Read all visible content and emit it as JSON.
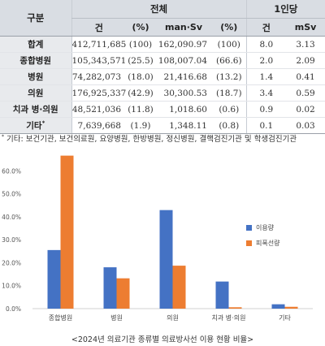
{
  "table": {
    "header_group": "구분",
    "group_total": "전체",
    "group_per_capita": "1인당",
    "sub_headers": [
      "건",
      "(%)",
      "man·Sv",
      "(%)",
      "건",
      "mSv"
    ],
    "rows": [
      {
        "label": "합계",
        "cases": "412,711,685",
        "cases_pct": "(100)",
        "dose": "162,090.97",
        "dose_pct": "(100)",
        "pc_cases": "8.0",
        "pc_msv": "3.13"
      },
      {
        "label": "종합병원",
        "cases": "105,343,571",
        "cases_pct": "(25.5)",
        "dose": "108,007.04",
        "dose_pct": "(66.6)",
        "pc_cases": "2.0",
        "pc_msv": "2.09"
      },
      {
        "label": "병원",
        "cases": "74,282,073",
        "cases_pct": "(18.0)",
        "dose": "21,416.68",
        "dose_pct": "(13.2)",
        "pc_cases": "1.4",
        "pc_msv": "0.41"
      },
      {
        "label": "의원",
        "cases": "176,925,337",
        "cases_pct": "(42.9)",
        "dose": "30,300.53",
        "dose_pct": "(18.7)",
        "pc_cases": "3.4",
        "pc_msv": "0.59"
      },
      {
        "label": "치과 병·의원",
        "cases": "48,521,036",
        "cases_pct": "(11.8)",
        "dose": "1,018.60",
        "dose_pct": "(0.6)",
        "pc_cases": "0.9",
        "pc_msv": "0.02"
      },
      {
        "label": "기타",
        "label_sup": "*",
        "cases": "7,639,668",
        "cases_pct": "(1.9)",
        "dose": "1,348.11",
        "dose_pct": "(0.8)",
        "pc_cases": "0.1",
        "pc_msv": "0.03"
      }
    ]
  },
  "footnote": {
    "mark": "*",
    "text": "기타: 보건기관, 보건의료원, 요양병원, 한방병원, 정신병원, 결핵검진기관 및 학생검진기관"
  },
  "chart_data": {
    "type": "bar",
    "categories": [
      "종합병원",
      "병원",
      "의원",
      "치과 병·의원",
      "기타"
    ],
    "series": [
      {
        "name": "이용량",
        "values": [
          25.5,
          18.0,
          42.9,
          11.8,
          1.9
        ],
        "color": "#4472c4"
      },
      {
        "name": "피폭선량",
        "values": [
          66.6,
          13.2,
          18.7,
          0.6,
          0.8
        ],
        "color": "#ed7d31"
      }
    ],
    "ylim": [
      0,
      70
    ],
    "yticks": [
      "0.0%",
      "10.0%",
      "20.0%",
      "30.0%",
      "40.0%",
      "50.0%",
      "60.0%"
    ],
    "legend_position": "right",
    "grid": false
  },
  "caption": "<2024년 의료기관 종류별 의료방사선 이용 현황 비율>"
}
